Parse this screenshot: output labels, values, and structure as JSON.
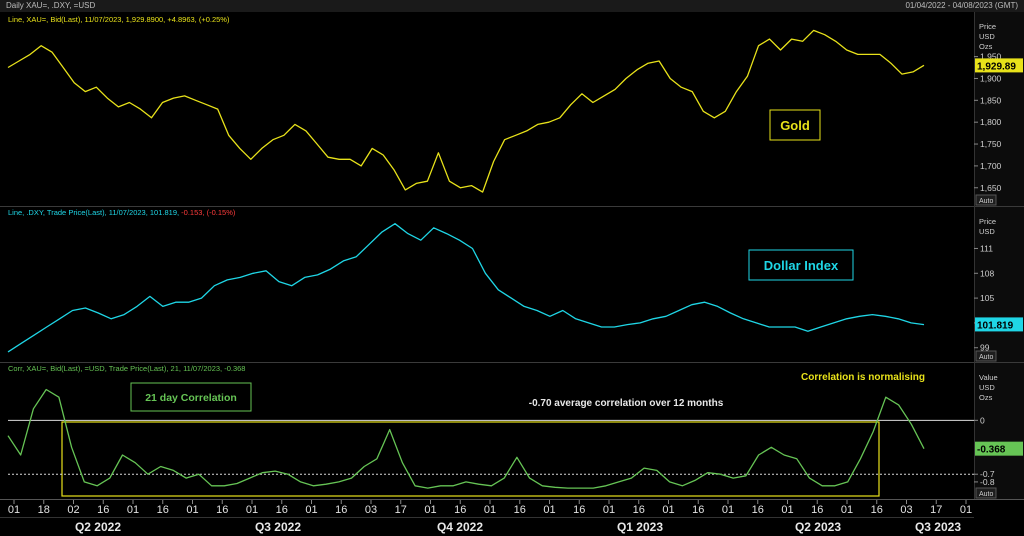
{
  "header": {
    "title": "Daily XAU=, .DXY, =USD",
    "date_range": "01/04/2022 - 04/08/2023 (GMT)"
  },
  "panels": {
    "gold": {
      "legend": "Line, XAU=, Bid(Last), 11/07/2023, 1,929.8900, +4.8963, (+0.25%)",
      "axis_title": [
        "Price",
        "USD",
        "Ozs"
      ],
      "last_label": "1,929.89",
      "callout": "Gold",
      "color": "#e8e21a"
    },
    "dxy": {
      "legend_prefix": "Line, .DXY, Trade Price(Last), 11/07/2023, 101.819, ",
      "legend_change": "-0.153, (-0.15%)",
      "axis_title": [
        "Price",
        "USD"
      ],
      "last_label": "101.819",
      "callout": "Dollar Index",
      "color": "#1fd6e6"
    },
    "corr": {
      "legend": "Corr, XAU=, Bid(Last), =USD, Trade Price(Last),  21, 11/07/2023, -0.368",
      "axis_title": [
        "Value",
        "USD",
        "Ozs"
      ],
      "last_label": "-0.368",
      "callout": "21 day Correlation",
      "note_avg": "-0.70 average correlation over 12 months",
      "note_norm": "Correlation is normalising",
      "color": "#66c455"
    }
  },
  "auto_label": "Auto",
  "x_axis": {
    "day_ticks": [
      "01",
      "18",
      "02",
      "16",
      "01",
      "16",
      "01",
      "16",
      "01",
      "16",
      "01",
      "16",
      "03",
      "17",
      "01",
      "16",
      "01",
      "16",
      "01",
      "16",
      "01",
      "16",
      "01",
      "16",
      "01",
      "16",
      "01",
      "16",
      "01",
      "16",
      "03",
      "17",
      "01"
    ],
    "quarters": [
      "Q2 2022",
      "Q3 2022",
      "Q4 2022",
      "Q1 2023",
      "Q2 2023",
      "Q3 2023"
    ]
  },
  "chart_data": [
    {
      "type": "line",
      "title": "Gold",
      "series": [
        {
          "name": "XAU=, Bid(Last)",
          "values": [
            1925,
            1940,
            1955,
            1975,
            1960,
            1925,
            1890,
            1870,
            1880,
            1855,
            1835,
            1845,
            1830,
            1810,
            1845,
            1855,
            1860,
            1850,
            1840,
            1830,
            1770,
            1740,
            1715,
            1740,
            1760,
            1770,
            1795,
            1780,
            1750,
            1720,
            1715,
            1715,
            1700,
            1740,
            1725,
            1690,
            1645,
            1660,
            1665,
            1730,
            1665,
            1650,
            1655,
            1640,
            1710,
            1760,
            1770,
            1780,
            1795,
            1800,
            1810,
            1840,
            1865,
            1845,
            1860,
            1875,
            1900,
            1920,
            1935,
            1940,
            1900,
            1880,
            1870,
            1825,
            1810,
            1825,
            1870,
            1905,
            1975,
            1990,
            1965,
            1990,
            1985,
            2010,
            2000,
            1985,
            1965,
            1955,
            1955,
            1955,
            1935,
            1910,
            1915,
            1930
          ]
        }
      ],
      "yticks": [
        1650,
        1700,
        1750,
        1800,
        1850,
        1900,
        1950
      ],
      "ylim": [
        1622,
        2020
      ],
      "last_value": 1929.89
    },
    {
      "type": "line",
      "title": "Dollar Index",
      "series": [
        {
          "name": ".DXY, Trade Price(Last)",
          "values": [
            98.5,
            99.5,
            100.5,
            101.5,
            102.5,
            103.5,
            103.8,
            103.2,
            102.5,
            103.0,
            104.0,
            105.2,
            104.0,
            104.5,
            104.5,
            105.0,
            106.5,
            107.2,
            107.5,
            108.0,
            108.3,
            107.0,
            106.5,
            107.5,
            107.8,
            108.5,
            109.5,
            110.0,
            111.5,
            113.0,
            114.0,
            112.8,
            112.0,
            113.5,
            112.8,
            112.0,
            111.0,
            108.0,
            106.0,
            105.0,
            104.0,
            103.5,
            102.8,
            103.5,
            102.5,
            102.0,
            101.5,
            101.5,
            101.8,
            102.0,
            102.5,
            102.8,
            103.5,
            104.2,
            104.5,
            104.0,
            103.2,
            102.5,
            102.0,
            101.5,
            101.5,
            101.5,
            101.0,
            101.5,
            102.0,
            102.5,
            102.8,
            103.0,
            102.8,
            102.5,
            102.0,
            101.8
          ],
          "label_note": "declines to the last value"
        }
      ],
      "yticks": [
        99,
        102,
        105,
        108,
        111
      ],
      "ylim": [
        98,
        114.2
      ],
      "last_value": 101.819
    },
    {
      "type": "line",
      "title": "21 day Correlation",
      "series": [
        {
          "name": "Corr, XAU=, =USD, 21",
          "values": [
            -0.2,
            -0.45,
            0.15,
            0.4,
            0.3,
            -0.35,
            -0.8,
            -0.85,
            -0.75,
            -0.45,
            -0.55,
            -0.7,
            -0.6,
            -0.65,
            -0.75,
            -0.7,
            -0.85,
            -0.85,
            -0.82,
            -0.75,
            -0.68,
            -0.66,
            -0.7,
            -0.8,
            -0.85,
            -0.83,
            -0.8,
            -0.75,
            -0.6,
            -0.5,
            -0.12,
            -0.55,
            -0.85,
            -0.88,
            -0.85,
            -0.85,
            -0.8,
            -0.83,
            -0.85,
            -0.75,
            -0.48,
            -0.75,
            -0.85,
            -0.87,
            -0.88,
            -0.88,
            -0.88,
            -0.85,
            -0.8,
            -0.75,
            -0.62,
            -0.65,
            -0.8,
            -0.85,
            -0.78,
            -0.68,
            -0.7,
            -0.75,
            -0.72,
            -0.45,
            -0.35,
            -0.45,
            -0.5,
            -0.75,
            -0.85,
            -0.85,
            -0.8,
            -0.5,
            -0.15,
            0.3,
            0.2,
            -0.05,
            -0.368
          ]
        }
      ],
      "yticks": [
        -0.8,
        -0.7,
        0
      ],
      "ylim": [
        -0.97,
        0.55
      ],
      "last_value": -0.368,
      "reference_lines": [
        0,
        -0.7
      ]
    }
  ]
}
